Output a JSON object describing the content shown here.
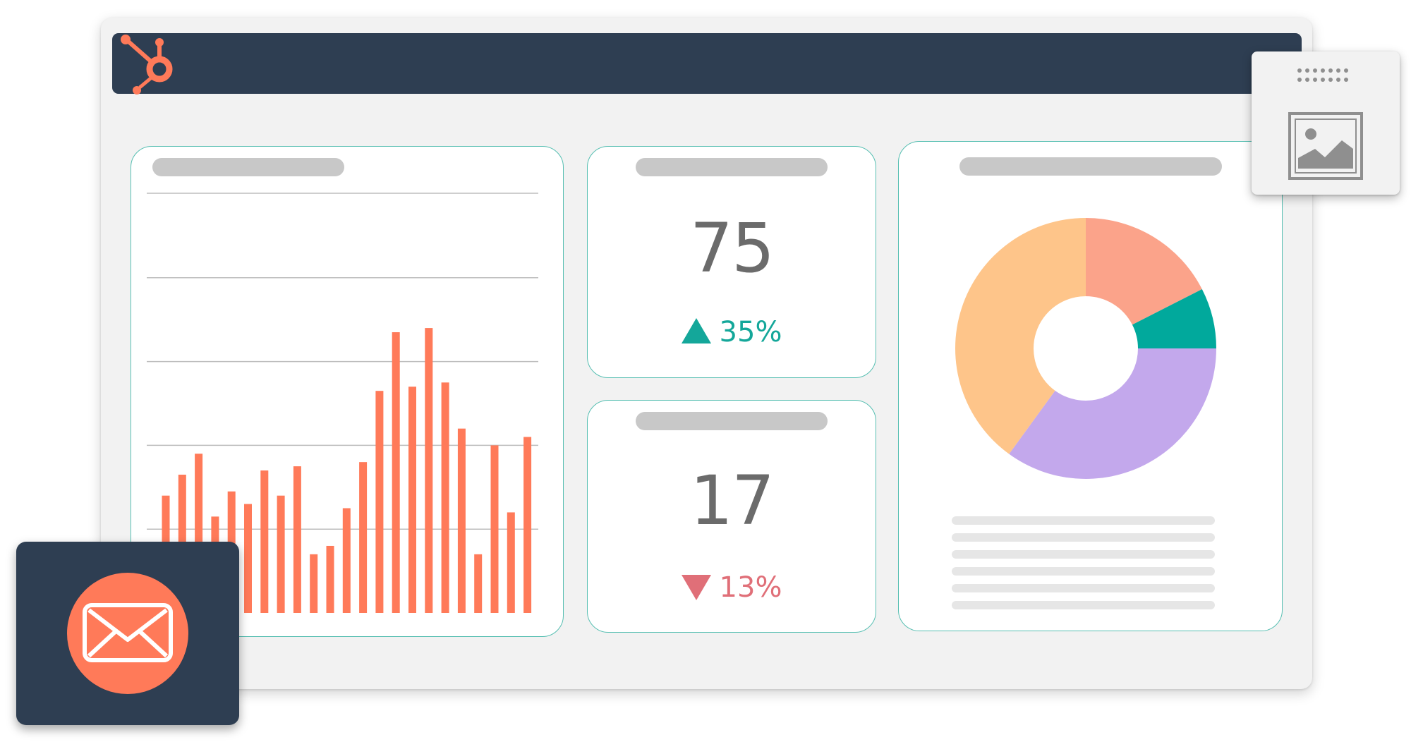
{
  "app": {
    "logo": "hubspot-sprocket-logo",
    "accent_color": "#ff7a59",
    "titlebar_color": "#2e3e52"
  },
  "kpis": [
    {
      "value": "75",
      "change": "35%",
      "direction": "up",
      "color": "#14a79a"
    },
    {
      "value": "17",
      "change": "13%",
      "direction": "down",
      "color": "#e06f78"
    }
  ],
  "chart_data": [
    {
      "type": "bar",
      "values": [
        28,
        33,
        38,
        23,
        29,
        26,
        34,
        28,
        35,
        14,
        16,
        25,
        36,
        53,
        67,
        54,
        68,
        55,
        44,
        14,
        40,
        24,
        42
      ],
      "ylim": [
        0,
        100
      ],
      "grid": true,
      "color": "#ff7a59"
    },
    {
      "type": "pie",
      "style": "donut",
      "values": [
        17.5,
        7.5,
        35,
        40
      ],
      "colors": [
        "#fba38a",
        "#01a99c",
        "#c3a8ec",
        "#fec58a"
      ]
    }
  ],
  "widgets": {
    "image_placeholder": "image-icon",
    "email": "envelope-icon"
  }
}
